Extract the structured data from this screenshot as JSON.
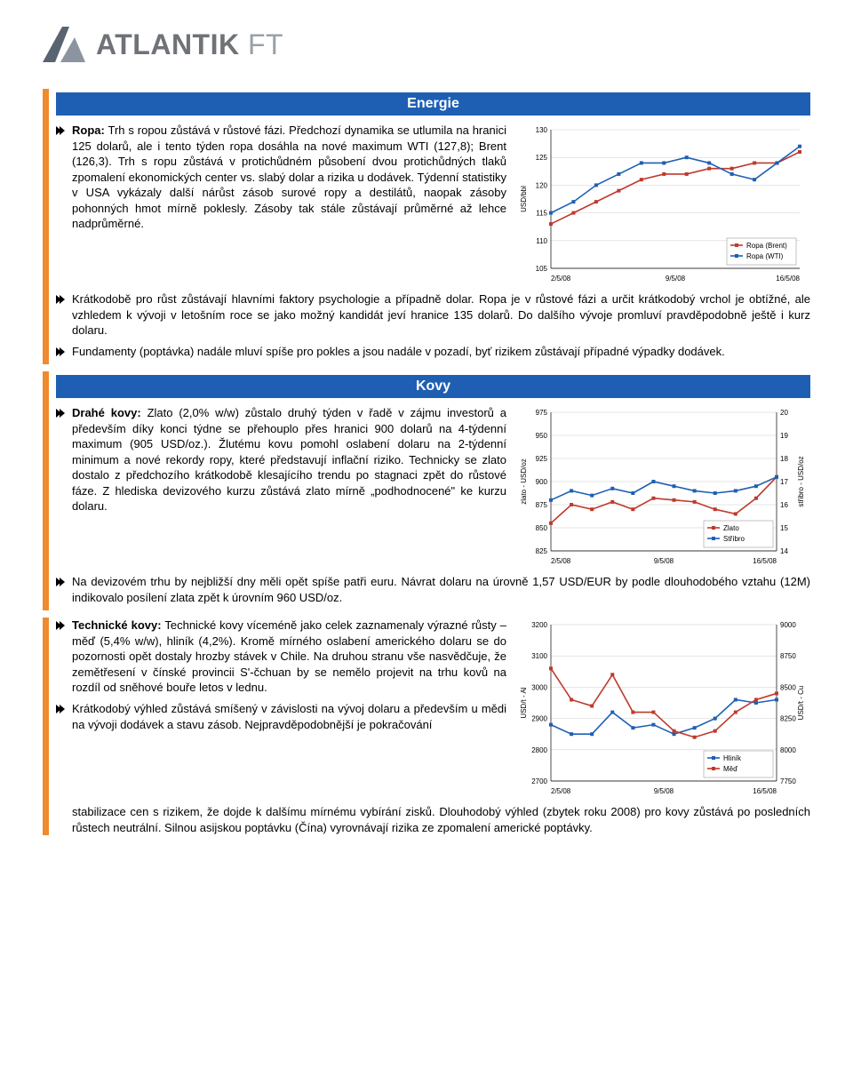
{
  "logo": {
    "name": "ATLANTIK",
    "suffix": "FT"
  },
  "sections": [
    {
      "title": "Energie",
      "bullets": [
        {
          "lead": "Ropa:",
          "text": " Trh s ropou zůstává v růstové fázi. Předchozí dynamika se utlumila na hranici 125 dolarů, ale i tento týden ropa dosáhla na nové maximum WTI (127,8); Brent (126,3). Trh s ropu zůstává v protichůdném působení dvou protichůdných tlaků zpomalení ekonomických center vs. slabý dolar a rizika u dodávek. Týdenní statistiky v USA vykázaly další nárůst zásob surové ropy a destilátů, naopak zásoby pohonných hmot mírně poklesly. Zásoby tak stále zůstávají průměrné až lehce nadprůměrné."
        },
        {
          "text": "Krátkodobě pro růst zůstávají hlavními faktory psychologie a případně dolar. Ropa je v růstové fázi a určit krátkodobý vrchol je obtížné, ale vzhledem k vývoji v letošním roce se jako možný kandidát jeví hranice 135 dolarů. Do dalšího vývoje promluví pravděpodobně ještě i kurz dolaru."
        },
        {
          "text": "Fundamenty (poptávka) nadále mluví spíše pro pokles a jsou nadále v pozadí, byť rizikem zůstávají případné výpadky dodávek."
        }
      ],
      "chart": {
        "type": "line",
        "ylabel": "USD/bbl",
        "yticks": [
          105,
          110,
          115,
          120,
          125,
          130
        ],
        "xticks": [
          "2/5/08",
          "9/5/08",
          "16/5/08"
        ],
        "series": [
          {
            "name": "Ropa (Brent)",
            "color": "#c0392b",
            "values": [
              113,
              115,
              117,
              119,
              121,
              122,
              122,
              123,
              123,
              124,
              124,
              126
            ]
          },
          {
            "name": "Ropa (WTI)",
            "color": "#1f5fb3",
            "values": [
              115,
              117,
              120,
              122,
              124,
              124,
              125,
              124,
              122,
              121,
              124,
              127
            ]
          }
        ],
        "legend_pos": "bottom-right"
      }
    },
    {
      "title": "Kovy",
      "bullets": [
        {
          "lead": "Drahé kovy:",
          "text": " Zlato (2,0% w/w) zůstalo druhý týden v řadě v zájmu investorů a především díky konci týdne se přehouplo přes hranici 900 dolarů na 4-týdenní maximum (905 USD/oz.). Žlutému kovu pomohl oslabení dolaru na 2-týdenní minimum a nové rekordy ropy, které představují inflační riziko. Technicky se zlato dostalo z předchozího krátkodobě klesajícího trendu po stagnaci zpět do růstové fáze. Z hlediska devizového kurzu zůstává zlato mírně „podhodnocené\" ke kurzu dolaru."
        },
        {
          "text": "Na devizovém trhu by nejbližší dny měli opět spíše patři euru. Návrat dolaru na úrovně 1,57 USD/EUR by podle dlouhodobého vztahu (12M) indikovalo posílení zlata zpět k úrovním 960 USD/oz."
        }
      ],
      "chart": {
        "type": "line-dual",
        "ylabel_left": "zlato - USD/oz",
        "ylabel_right": "stříbro - USD/oz",
        "yticks_left": [
          825,
          850,
          875,
          900,
          925,
          950,
          975
        ],
        "yticks_right": [
          14,
          15,
          16,
          17,
          18,
          19,
          20
        ],
        "xticks": [
          "2/5/08",
          "9/5/08",
          "16/5/08"
        ],
        "series": [
          {
            "name": "Zlato",
            "color": "#c0392b",
            "axis": "left",
            "values": [
              855,
              875,
              870,
              878,
              870,
              882,
              880,
              878,
              870,
              865,
              882,
              905
            ]
          },
          {
            "name": "Stříbro",
            "color": "#1f5fb3",
            "axis": "right",
            "values": [
              16.2,
              16.6,
              16.4,
              16.7,
              16.5,
              17.0,
              16.8,
              16.6,
              16.5,
              16.6,
              16.8,
              17.2
            ]
          }
        ],
        "legend_pos": "bottom-right"
      }
    },
    {
      "title": "",
      "bullets": [
        {
          "lead": "Technické kovy:",
          "text": " Technické kovy víceméně jako celek zaznamenaly výrazné růsty – měď (5,4% w/w), hliník (4,2%). Kromě mírného oslabení amerického dolaru se do pozornosti opět dostaly hrozby stávek v Chile. Na druhou stranu vše nasvědčuje, že zemětřesení v čínské provincii S'-čchuan by se nemělo projevit na trhu kovů na rozdíl od sněhové bouře letos v lednu."
        },
        {
          "text": "Krátkodobý výhled zůstává smíšený v závislosti na vývoj dolaru a především u mědi na vývoji dodávek a stavu zásob. Nejpravděpodobnější je pokračování stabilizace cen s rizikem, že dojde k dalšímu mírnému vybírání zisků. Dlouhodobý výhled (zbytek roku 2008) pro kovy zůstává po posledních růstech neutrální. Silnou asijskou poptávku (Čína) vyrovnávají rizika ze zpomalení americké poptávky."
        }
      ],
      "chart": {
        "type": "line-dual",
        "ylabel_left": "USD/t - Al",
        "ylabel_right": "USD/t - Cu",
        "yticks_left": [
          2700,
          2800,
          2900,
          3000,
          3100,
          3200
        ],
        "yticks_right": [
          7750,
          8000,
          8250,
          8500,
          8750,
          9000
        ],
        "xticks": [
          "2/5/08",
          "9/5/08",
          "16/5/08"
        ],
        "series": [
          {
            "name": "Hliník",
            "color": "#1f5fb3",
            "axis": "left",
            "values": [
              2880,
              2850,
              2850,
              2920,
              2870,
              2880,
              2850,
              2870,
              2900,
              2960,
              2950,
              2960
            ]
          },
          {
            "name": "Měď",
            "color": "#c0392b",
            "axis": "right",
            "values": [
              8650,
              8400,
              8350,
              8600,
              8300,
              8300,
              8150,
              8100,
              8150,
              8300,
              8400,
              8450
            ]
          }
        ],
        "legend_pos": "bottom-right"
      }
    }
  ]
}
